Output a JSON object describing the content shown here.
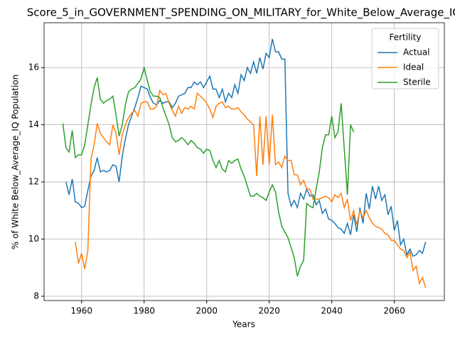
{
  "chart_data": {
    "type": "line",
    "title": "Score_5_in_GOVERNMENT_SPENDING_ON_MILITARY_for_White_Below_Average_IQ",
    "xlabel": "Years",
    "ylabel": "% of White Below_Average_IQ Population",
    "legend_title": "Fertility",
    "legend": "upper right",
    "xlim": [
      1948,
      2076
    ],
    "xticks": [
      1960,
      1980,
      2000,
      2020,
      2040,
      2060
    ],
    "ylim": [
      7.85,
      17.57
    ],
    "yticks": [
      8,
      10,
      12,
      14,
      16
    ],
    "grid": true,
    "x": [
      1954,
      1955,
      1956,
      1957,
      1958,
      1959,
      1960,
      1961,
      1962,
      1963,
      1964,
      1965,
      1966,
      1967,
      1968,
      1969,
      1970,
      1971,
      1972,
      1973,
      1974,
      1975,
      1976,
      1977,
      1978,
      1979,
      1980,
      1981,
      1982,
      1983,
      1984,
      1985,
      1986,
      1987,
      1988,
      1989,
      1990,
      1991,
      1992,
      1993,
      1994,
      1995,
      1996,
      1997,
      1998,
      1999,
      2000,
      2001,
      2002,
      2003,
      2004,
      2005,
      2006,
      2007,
      2008,
      2009,
      2010,
      2011,
      2012,
      2013,
      2014,
      2015,
      2016,
      2017,
      2018,
      2019,
      2020,
      2021,
      2022,
      2023,
      2024,
      2025,
      2026,
      2027,
      2028,
      2029,
      2030,
      2031,
      2032,
      2033,
      2034,
      2035,
      2036,
      2037,
      2038,
      2039,
      2040,
      2041,
      2042,
      2043,
      2044,
      2045,
      2046,
      2047,
      2048,
      2049,
      2050,
      2051,
      2052,
      2053,
      2054,
      2055,
      2056,
      2057,
      2058,
      2059,
      2060,
      2061,
      2062,
      2063,
      2064,
      2065,
      2066,
      2067,
      2068,
      2069,
      2070
    ],
    "series": [
      {
        "name": "Actual",
        "color": "#1f77b4",
        "values": [
          null,
          12.0,
          11.55,
          12.1,
          11.3,
          11.25,
          11.1,
          11.15,
          11.7,
          12.2,
          12.4,
          12.85,
          12.35,
          12.4,
          12.35,
          12.4,
          12.6,
          12.55,
          12.0,
          12.9,
          13.5,
          14.0,
          14.3,
          14.6,
          14.95,
          15.35,
          15.3,
          15.25,
          14.95,
          14.75,
          14.7,
          14.85,
          14.75,
          14.8,
          14.8,
          14.6,
          14.75,
          15.0,
          15.05,
          15.1,
          15.3,
          15.3,
          15.5,
          15.4,
          15.5,
          15.3,
          15.5,
          15.7,
          15.25,
          15.25,
          14.95,
          15.25,
          14.8,
          15.1,
          14.95,
          15.4,
          15.1,
          15.75,
          15.55,
          16.0,
          15.8,
          16.2,
          15.8,
          16.35,
          15.95,
          16.5,
          16.35,
          17.0,
          16.55,
          16.55,
          16.3,
          16.3,
          11.6,
          11.15,
          11.35,
          11.1,
          11.6,
          11.4,
          11.75,
          11.5,
          11.55,
          11.2,
          11.35,
          10.9,
          11.05,
          10.7,
          10.65,
          10.55,
          10.4,
          10.35,
          10.2,
          10.55,
          10.15,
          10.85,
          10.25,
          11.1,
          10.55,
          11.6,
          11.05,
          11.85,
          11.4,
          11.85,
          11.35,
          11.55,
          10.85,
          11.15,
          10.3,
          10.65,
          9.8,
          10.0,
          9.45,
          9.65,
          9.4,
          9.45,
          9.6,
          9.5,
          9.9
        ]
      },
      {
        "name": "Ideal",
        "color": "#ff7f0e",
        "values": [
          null,
          null,
          null,
          null,
          9.9,
          9.15,
          9.5,
          8.95,
          9.6,
          12.8,
          13.3,
          14.05,
          13.7,
          13.55,
          13.4,
          13.3,
          14.0,
          13.7,
          12.95,
          13.65,
          14.0,
          14.25,
          14.4,
          14.5,
          14.3,
          14.75,
          14.8,
          14.8,
          14.55,
          14.55,
          14.65,
          15.2,
          15.05,
          15.1,
          14.75,
          14.5,
          14.3,
          14.65,
          14.4,
          14.6,
          14.55,
          14.65,
          14.55,
          15.1,
          15.0,
          14.9,
          14.75,
          14.55,
          14.25,
          14.65,
          14.75,
          14.8,
          14.6,
          14.65,
          14.55,
          14.55,
          14.6,
          14.45,
          14.35,
          14.2,
          14.1,
          14.0,
          12.2,
          14.3,
          12.6,
          14.3,
          12.6,
          14.35,
          12.6,
          12.7,
          12.5,
          12.9,
          12.75,
          12.75,
          12.25,
          12.25,
          11.9,
          12.05,
          11.75,
          11.75,
          11.4,
          11.4,
          11.4,
          11.45,
          11.5,
          11.45,
          11.3,
          11.55,
          11.45,
          11.6,
          11.1,
          11.4,
          10.65,
          11.0,
          10.5,
          11.0,
          10.75,
          11.0,
          10.75,
          10.55,
          10.45,
          10.4,
          10.35,
          10.2,
          10.15,
          9.95,
          9.95,
          9.8,
          9.65,
          9.6,
          9.35,
          9.55,
          8.9,
          9.05,
          8.45,
          8.65,
          8.3
        ]
      },
      {
        "name": "Sterile",
        "color": "#2ca02c",
        "values": [
          14.05,
          13.2,
          13.05,
          13.8,
          12.85,
          12.95,
          12.95,
          13.3,
          14.0,
          14.7,
          15.3,
          15.65,
          14.9,
          14.75,
          14.85,
          14.9,
          15.0,
          14.35,
          13.6,
          14.0,
          14.7,
          15.15,
          15.25,
          15.3,
          15.45,
          15.6,
          16.0,
          15.55,
          15.15,
          15.0,
          15.0,
          14.95,
          14.6,
          14.3,
          14.0,
          13.55,
          13.4,
          13.45,
          13.55,
          13.45,
          13.3,
          13.45,
          13.35,
          13.2,
          13.15,
          13.0,
          13.15,
          13.1,
          12.75,
          12.5,
          12.75,
          12.45,
          12.35,
          12.75,
          12.65,
          12.75,
          12.8,
          12.45,
          12.2,
          11.85,
          11.5,
          11.5,
          11.6,
          11.5,
          11.45,
          11.35,
          11.65,
          11.9,
          11.65,
          10.95,
          10.45,
          10.25,
          10.05,
          9.7,
          9.35,
          8.7,
          9.05,
          9.25,
          11.25,
          11.15,
          11.1,
          11.75,
          12.35,
          13.2,
          13.65,
          13.65,
          14.3,
          13.55,
          13.75,
          14.75,
          13.15,
          11.55,
          14.0,
          13.75,
          null,
          null,
          null,
          null,
          null,
          null,
          null,
          null,
          null,
          null,
          null,
          null,
          null,
          null,
          null,
          null,
          null,
          null,
          null,
          null,
          null,
          null,
          null
        ]
      }
    ]
  }
}
